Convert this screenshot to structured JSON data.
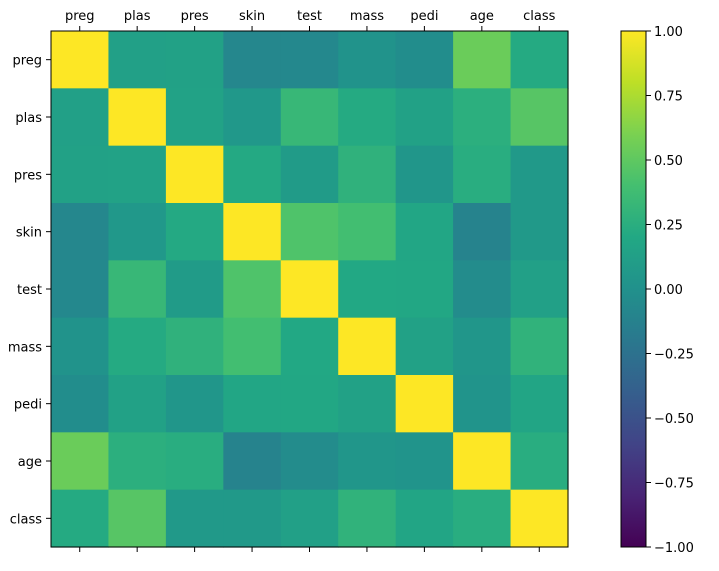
{
  "chart_data": {
    "type": "heatmap",
    "title": "",
    "xlabel": "",
    "ylabel": "",
    "labels": [
      "preg",
      "plas",
      "pres",
      "skin",
      "test",
      "mass",
      "pedi",
      "age",
      "class"
    ],
    "values": [
      [
        1.0,
        0.13,
        0.14,
        -0.08,
        -0.07,
        0.02,
        -0.03,
        0.54,
        0.22
      ],
      [
        0.13,
        1.0,
        0.15,
        0.06,
        0.33,
        0.22,
        0.14,
        0.26,
        0.47
      ],
      [
        0.14,
        0.15,
        1.0,
        0.21,
        0.09,
        0.28,
        0.04,
        0.24,
        0.07
      ],
      [
        -0.08,
        0.06,
        0.21,
        1.0,
        0.44,
        0.39,
        0.18,
        -0.11,
        0.07
      ],
      [
        -0.07,
        0.33,
        0.09,
        0.44,
        1.0,
        0.2,
        0.19,
        -0.04,
        0.13
      ],
      [
        0.02,
        0.22,
        0.28,
        0.39,
        0.2,
        1.0,
        0.14,
        0.04,
        0.29
      ],
      [
        -0.03,
        0.14,
        0.04,
        0.18,
        0.19,
        0.14,
        1.0,
        0.03,
        0.17
      ],
      [
        0.54,
        0.26,
        0.24,
        -0.11,
        -0.04,
        0.04,
        0.03,
        1.0,
        0.24
      ],
      [
        0.22,
        0.47,
        0.07,
        0.07,
        0.13,
        0.29,
        0.17,
        0.24,
        1.0
      ]
    ],
    "colormap": "viridis",
    "colorbar": {
      "range": [
        -1,
        1
      ],
      "ticks": [
        1.0,
        0.75,
        0.5,
        0.25,
        0.0,
        -0.25,
        -0.5,
        -0.75,
        -1.0
      ],
      "tick_labels": [
        "1.00",
        "0.75",
        "0.50",
        "0.25",
        "0.00",
        "−0.25",
        "−0.50",
        "−0.75",
        "−1.00"
      ]
    },
    "x_axis_position": "top",
    "grid": false
  }
}
